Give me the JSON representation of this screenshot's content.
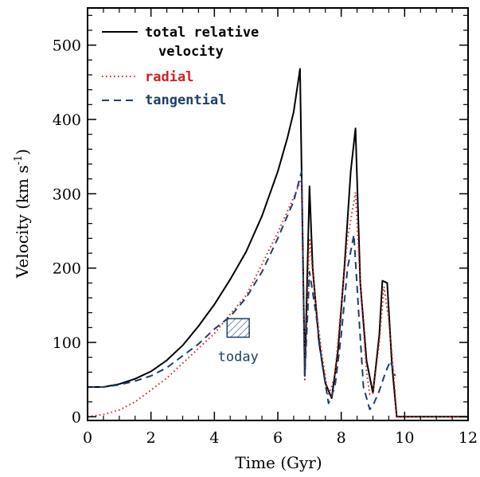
{
  "chart_data": {
    "type": "line",
    "title": "",
    "xlabel": "Time (Gyr)",
    "ylabel_main": "Velocity (km s",
    "ylabel_sup": "-1",
    "ylabel_close": ")",
    "xlim": [
      0,
      12
    ],
    "ylim": [
      -5,
      550
    ],
    "xticks": [
      0,
      2,
      4,
      6,
      8,
      10,
      12
    ],
    "xtick_labels": [
      "0",
      "2",
      "4",
      "6",
      "8",
      "10",
      "12"
    ],
    "yticks": [
      0,
      100,
      200,
      300,
      400,
      500
    ],
    "ytick_labels": [
      "0",
      "100",
      "200",
      "300",
      "400",
      "500"
    ],
    "grid": false,
    "legend_position": "top-left",
    "series": [
      {
        "name": "total relative velocity",
        "name_line1": "total relative",
        "name_line2": "velocity",
        "color": "#000000",
        "style": "solid",
        "x": [
          0,
          0.5,
          1,
          1.5,
          2,
          2.5,
          3,
          3.5,
          4,
          4.5,
          5,
          5.5,
          6,
          6.3,
          6.5,
          6.7,
          6.85,
          7.0,
          7.1,
          7.3,
          7.5,
          7.7,
          7.9,
          8.1,
          8.3,
          8.45,
          8.6,
          8.8,
          9.0,
          9.2,
          9.3,
          9.45,
          9.6,
          9.75,
          10,
          11,
          12
        ],
        "y": [
          40,
          40,
          44,
          51,
          61,
          76,
          96,
          122,
          151,
          185,
          222,
          270,
          330,
          375,
          410,
          468,
          55,
          310,
          200,
          100,
          45,
          25,
          90,
          200,
          330,
          388,
          180,
          75,
          32,
          110,
          183,
          180,
          70,
          0,
          0,
          0,
          0
        ]
      },
      {
        "name": "radial",
        "color": "#d42020",
        "style": "dotted",
        "x": [
          0,
          0.5,
          1,
          1.5,
          2,
          2.5,
          3,
          3.5,
          4,
          4.5,
          5,
          5.5,
          6,
          6.5,
          6.75,
          6.85,
          7.0,
          7.2,
          7.4,
          7.6,
          7.8,
          8.0,
          8.2,
          8.45,
          8.6,
          8.8,
          8.9,
          9.0,
          9.2,
          9.35,
          9.5,
          9.65,
          9.75,
          10,
          11,
          12
        ],
        "y": [
          0,
          3,
          9,
          20,
          36,
          52,
          72,
          92,
          112,
          138,
          163,
          205,
          248,
          295,
          320,
          50,
          240,
          150,
          80,
          28,
          55,
          150,
          240,
          302,
          180,
          60,
          30,
          32,
          100,
          175,
          130,
          60,
          0,
          0,
          0,
          0
        ]
      },
      {
        "name": "tangential",
        "color": "#1e3f66",
        "style": "dashed",
        "x": [
          0,
          0.5,
          1,
          1.5,
          2,
          2.5,
          3,
          3.5,
          4,
          4.5,
          5,
          5.5,
          6,
          6.5,
          6.75,
          6.85,
          7.0,
          7.2,
          7.4,
          7.6,
          7.8,
          8.0,
          8.2,
          8.4,
          8.55,
          8.7,
          8.9,
          9.0,
          9.2,
          9.4,
          9.55,
          9.7
        ],
        "y": [
          40,
          40,
          43,
          48,
          55,
          66,
          82,
          98,
          118,
          135,
          160,
          195,
          240,
          290,
          330,
          55,
          195,
          140,
          70,
          18,
          40,
          110,
          200,
          245,
          140,
          40,
          10,
          15,
          35,
          60,
          75,
          55
        ]
      }
    ],
    "annotations": [
      {
        "text": "today",
        "box_x": [
          4.4,
          5.1
        ],
        "box_y": [
          107,
          132
        ],
        "color": "#1e3f66",
        "hatched": true
      }
    ]
  }
}
